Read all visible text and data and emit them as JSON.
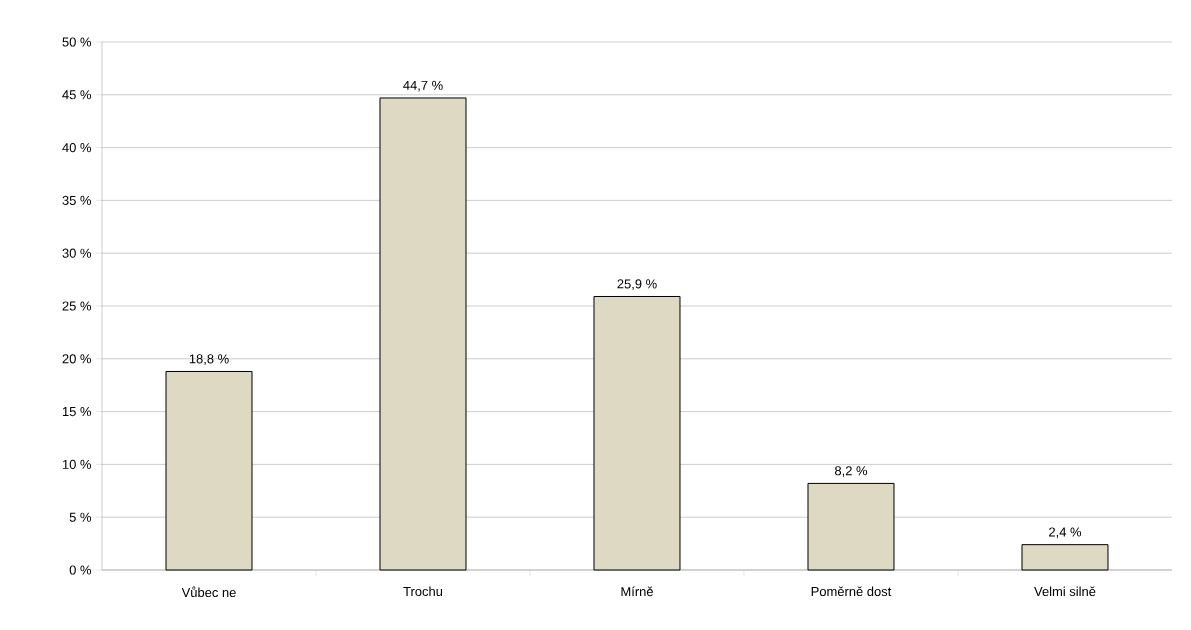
{
  "chart_data": {
    "type": "bar",
    "categories": [
      "Vůbec ne",
      "Trochu",
      "Mírně",
      "Poměrně dost",
      "Velmi silně"
    ],
    "values": [
      18.8,
      44.7,
      25.9,
      8.2,
      2.4
    ],
    "value_labels": [
      "18,8 %",
      "44,7 %",
      "25,9 %",
      "8,2 %",
      "2,4 %"
    ],
    "color": "#ddd9c3",
    "ylim": [
      0,
      50
    ],
    "yticks": [
      {
        "value": 0,
        "label": "0 %"
      },
      {
        "value": 5,
        "label": "5 %"
      },
      {
        "value": 10,
        "label": "10 %"
      },
      {
        "value": 15,
        "label": "15 %"
      },
      {
        "value": 20,
        "label": "20 %"
      },
      {
        "value": 25,
        "label": "25 %"
      },
      {
        "value": 30,
        "label": "30 %"
      },
      {
        "value": 35,
        "label": "35 %"
      },
      {
        "value": 40,
        "label": "40 %"
      },
      {
        "value": 45,
        "label": "45 %"
      },
      {
        "value": 50,
        "label": "50 %"
      }
    ],
    "grid": "y"
  }
}
